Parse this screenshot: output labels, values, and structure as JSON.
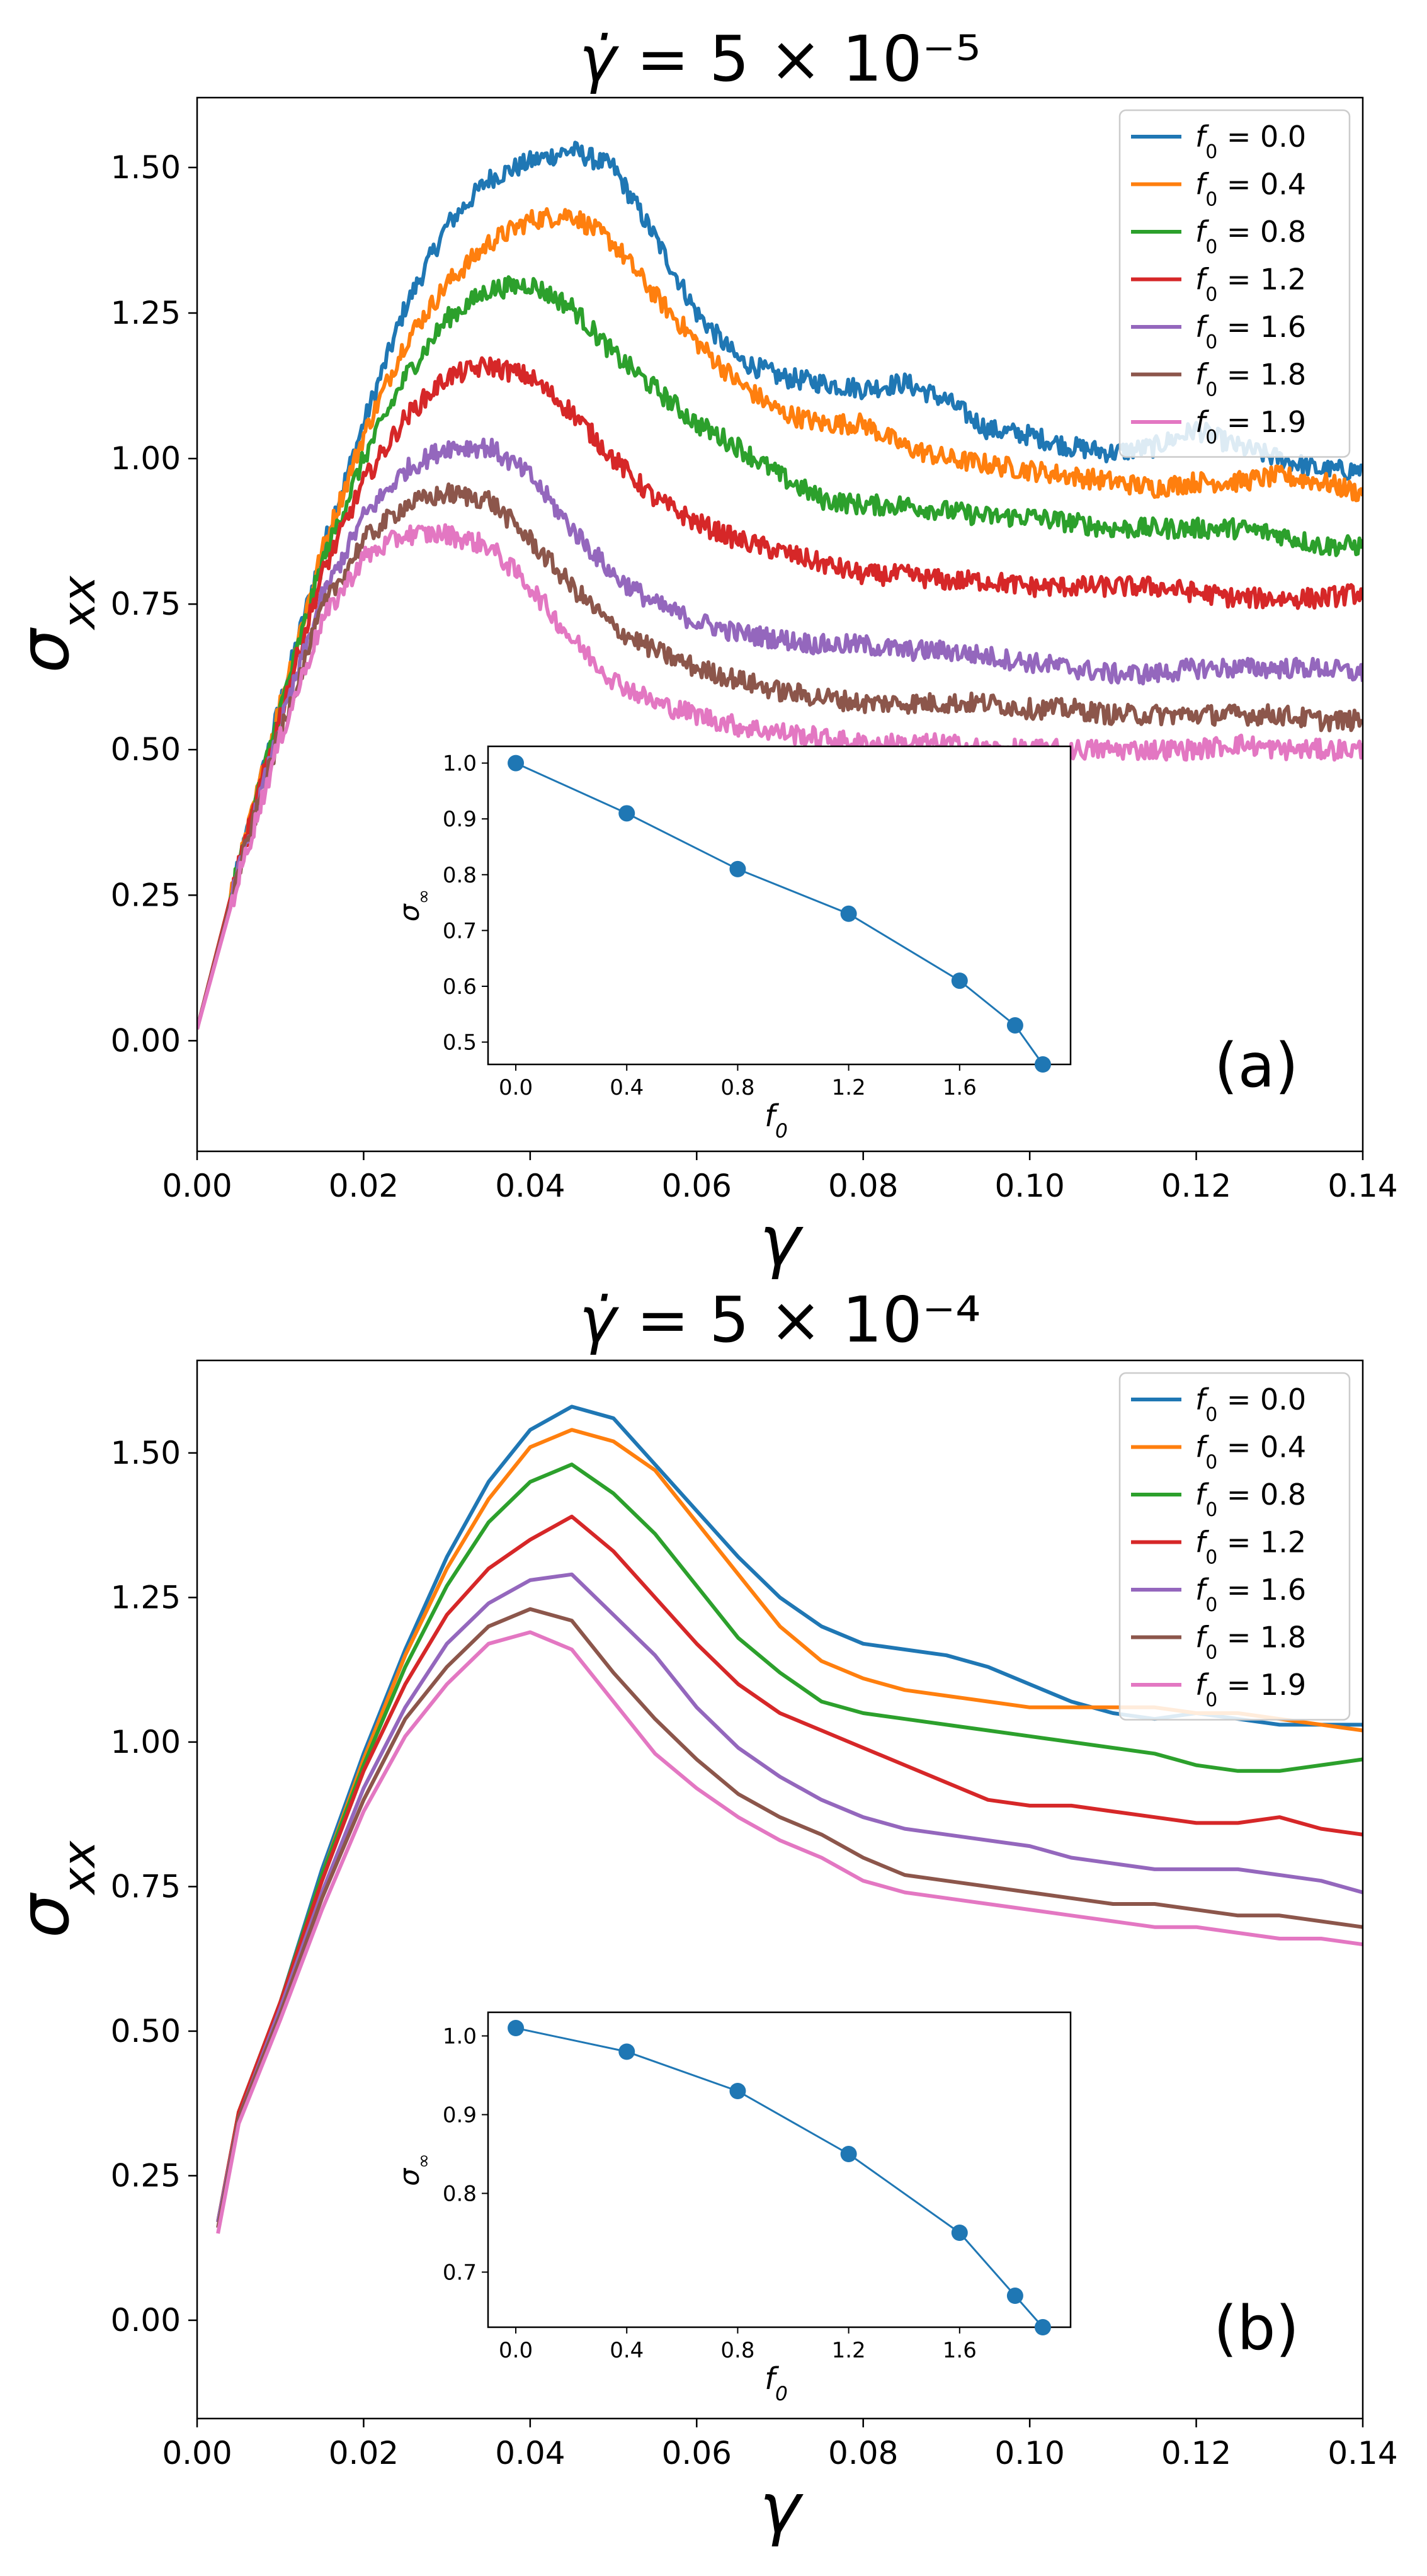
{
  "chart_data": [
    {
      "type": "line",
      "panel_label": "(a)",
      "title": "γ̇ = 5 × 10⁻⁵",
      "xlabel": "γ",
      "ylabel": "σxx",
      "xlim": [
        0.0,
        0.14
      ],
      "ylim": [
        -0.19,
        1.62
      ],
      "xticks": [
        "0.00",
        "0.02",
        "0.04",
        "0.06",
        "0.08",
        "0.10",
        "0.12",
        "0.14"
      ],
      "yticks": [
        "0.00",
        "0.25",
        "0.50",
        "0.75",
        "1.00",
        "1.25",
        "1.50"
      ],
      "grid": false,
      "legend_position": "top-right",
      "noisy": true,
      "series": [
        {
          "name": "f0 = 0.0",
          "color": "#1f77b4",
          "x": [
            0.0,
            0.005,
            0.01,
            0.015,
            0.02,
            0.025,
            0.03,
            0.035,
            0.04,
            0.045,
            0.05,
            0.055,
            0.06,
            0.065,
            0.07,
            0.075,
            0.08,
            0.085,
            0.09,
            0.095,
            0.1,
            0.105,
            0.11,
            0.115,
            0.12,
            0.125,
            0.13,
            0.135,
            0.14
          ],
          "y": [
            0.02,
            0.3,
            0.58,
            0.84,
            1.06,
            1.26,
            1.4,
            1.48,
            1.51,
            1.53,
            1.5,
            1.38,
            1.25,
            1.17,
            1.14,
            1.13,
            1.12,
            1.13,
            1.1,
            1.05,
            1.04,
            1.02,
            1.01,
            1.02,
            1.05,
            1.02,
            1.0,
            0.98,
            0.98
          ]
        },
        {
          "name": "f0 = 0.4",
          "color": "#ff7f0e",
          "x": [
            0.0,
            0.005,
            0.01,
            0.015,
            0.02,
            0.025,
            0.03,
            0.035,
            0.04,
            0.045,
            0.05,
            0.055,
            0.06,
            0.065,
            0.07,
            0.075,
            0.08,
            0.085,
            0.09,
            0.095,
            0.1,
            0.105,
            0.11,
            0.115,
            0.12,
            0.125,
            0.13,
            0.135,
            0.14
          ],
          "y": [
            0.02,
            0.3,
            0.58,
            0.84,
            1.04,
            1.2,
            1.3,
            1.37,
            1.41,
            1.42,
            1.37,
            1.28,
            1.2,
            1.13,
            1.08,
            1.06,
            1.06,
            1.02,
            1.0,
            0.99,
            0.98,
            0.97,
            0.96,
            0.95,
            0.96,
            0.96,
            0.97,
            0.96,
            0.94
          ]
        },
        {
          "name": "f0 = 0.8",
          "color": "#2ca02c",
          "x": [
            0.0,
            0.005,
            0.01,
            0.015,
            0.02,
            0.025,
            0.03,
            0.035,
            0.04,
            0.045,
            0.05,
            0.055,
            0.06,
            0.065,
            0.07,
            0.075,
            0.08,
            0.085,
            0.09,
            0.095,
            0.1,
            0.105,
            0.11,
            0.115,
            0.12,
            0.125,
            0.13,
            0.135,
            0.14
          ],
          "y": [
            0.02,
            0.3,
            0.57,
            0.82,
            1.0,
            1.14,
            1.24,
            1.29,
            1.3,
            1.26,
            1.18,
            1.12,
            1.06,
            1.02,
            0.97,
            0.93,
            0.92,
            0.92,
            0.91,
            0.9,
            0.9,
            0.89,
            0.88,
            0.88,
            0.88,
            0.88,
            0.87,
            0.85,
            0.85
          ]
        },
        {
          "name": "f0 = 1.2",
          "color": "#d62728",
          "x": [
            0.0,
            0.005,
            0.01,
            0.015,
            0.02,
            0.025,
            0.03,
            0.035,
            0.04,
            0.045,
            0.05,
            0.055,
            0.06,
            0.065,
            0.07,
            0.075,
            0.08,
            0.085,
            0.09,
            0.095,
            0.1,
            0.105,
            0.11,
            0.115,
            0.12,
            0.125,
            0.13,
            0.135,
            0.14
          ],
          "y": [
            0.02,
            0.3,
            0.56,
            0.8,
            0.96,
            1.07,
            1.14,
            1.16,
            1.14,
            1.08,
            1.0,
            0.93,
            0.89,
            0.86,
            0.84,
            0.82,
            0.8,
            0.8,
            0.79,
            0.79,
            0.78,
            0.78,
            0.78,
            0.78,
            0.77,
            0.76,
            0.76,
            0.76,
            0.77
          ]
        },
        {
          "name": "f0 = 1.6",
          "color": "#9467bd",
          "x": [
            0.0,
            0.005,
            0.01,
            0.015,
            0.02,
            0.025,
            0.03,
            0.035,
            0.04,
            0.045,
            0.05,
            0.055,
            0.06,
            0.065,
            0.07,
            0.075,
            0.08,
            0.085,
            0.09,
            0.095,
            0.1,
            0.105,
            0.11,
            0.115,
            0.12,
            0.125,
            0.13,
            0.135,
            0.14
          ],
          "y": [
            0.02,
            0.29,
            0.54,
            0.76,
            0.9,
            0.98,
            1.02,
            1.02,
            0.97,
            0.88,
            0.8,
            0.75,
            0.72,
            0.7,
            0.69,
            0.68,
            0.68,
            0.67,
            0.67,
            0.66,
            0.65,
            0.64,
            0.63,
            0.63,
            0.64,
            0.64,
            0.64,
            0.64,
            0.63
          ]
        },
        {
          "name": "f0 = 1.8",
          "color": "#8c564b",
          "x": [
            0.0,
            0.005,
            0.01,
            0.015,
            0.02,
            0.025,
            0.03,
            0.035,
            0.04,
            0.045,
            0.05,
            0.055,
            0.06,
            0.065,
            0.07,
            0.075,
            0.08,
            0.085,
            0.09,
            0.095,
            0.1,
            0.105,
            0.11,
            0.115,
            0.12,
            0.125,
            0.13,
            0.135,
            0.14
          ],
          "y": [
            0.02,
            0.29,
            0.53,
            0.74,
            0.86,
            0.92,
            0.94,
            0.93,
            0.86,
            0.78,
            0.71,
            0.67,
            0.64,
            0.62,
            0.6,
            0.59,
            0.58,
            0.58,
            0.58,
            0.58,
            0.57,
            0.57,
            0.56,
            0.56,
            0.56,
            0.56,
            0.56,
            0.55,
            0.55
          ]
        },
        {
          "name": "f0 = 1.9",
          "color": "#e377c2",
          "x": [
            0.0,
            0.005,
            0.01,
            0.015,
            0.02,
            0.025,
            0.03,
            0.035,
            0.04,
            0.045,
            0.05,
            0.055,
            0.06,
            0.065,
            0.07,
            0.075,
            0.08,
            0.085,
            0.09,
            0.095,
            0.1,
            0.105,
            0.11,
            0.115,
            0.12,
            0.125,
            0.13,
            0.135,
            0.14
          ],
          "y": [
            0.02,
            0.28,
            0.52,
            0.72,
            0.83,
            0.87,
            0.87,
            0.85,
            0.78,
            0.69,
            0.62,
            0.58,
            0.56,
            0.54,
            0.53,
            0.52,
            0.51,
            0.51,
            0.51,
            0.5,
            0.5,
            0.5,
            0.5,
            0.5,
            0.5,
            0.51,
            0.5,
            0.5,
            0.5
          ]
        }
      ],
      "inset": {
        "type": "line",
        "xlabel": "f0",
        "ylabel": "σ∞",
        "xlim": [
          -0.1,
          2.0
        ],
        "ylim": [
          0.46,
          1.03
        ],
        "xticks": [
          "0.0",
          "0.4",
          "0.8",
          "1.2",
          "1.6"
        ],
        "yticks": [
          "0.5",
          "0.6",
          "0.7",
          "0.8",
          "0.9",
          "1.0"
        ],
        "color": "#1f77b4",
        "x": [
          0.0,
          0.4,
          0.8,
          1.2,
          1.6,
          1.8,
          1.9
        ],
        "y": [
          1.0,
          0.91,
          0.81,
          0.73,
          0.61,
          0.53,
          0.46
        ]
      }
    },
    {
      "type": "line",
      "panel_label": "(b)",
      "title": "γ̇ = 5 × 10⁻⁴",
      "xlabel": "γ",
      "ylabel": "σxx",
      "xlim": [
        0.0,
        0.14
      ],
      "ylim": [
        -0.17,
        1.66
      ],
      "xticks": [
        "0.00",
        "0.02",
        "0.04",
        "0.06",
        "0.08",
        "0.10",
        "0.12",
        "0.14"
      ],
      "yticks": [
        "0.00",
        "0.25",
        "0.50",
        "0.75",
        "1.00",
        "1.25",
        "1.50"
      ],
      "grid": false,
      "legend_position": "top-right",
      "noisy": false,
      "series": [
        {
          "name": "f0 = 0.0",
          "color": "#1f77b4",
          "x": [
            0.0025,
            0.005,
            0.01,
            0.015,
            0.02,
            0.025,
            0.03,
            0.035,
            0.04,
            0.045,
            0.05,
            0.055,
            0.06,
            0.065,
            0.07,
            0.075,
            0.08,
            0.085,
            0.09,
            0.095,
            0.1,
            0.105,
            0.11,
            0.115,
            0.12,
            0.125,
            0.13,
            0.135,
            0.14
          ],
          "y": [
            0.17,
            0.36,
            0.55,
            0.78,
            0.98,
            1.16,
            1.32,
            1.45,
            1.54,
            1.58,
            1.56,
            1.48,
            1.4,
            1.32,
            1.25,
            1.2,
            1.17,
            1.16,
            1.15,
            1.13,
            1.1,
            1.07,
            1.05,
            1.04,
            1.05,
            1.04,
            1.03,
            1.03,
            1.03
          ]
        },
        {
          "name": "f0 = 0.4",
          "color": "#ff7f0e",
          "x": [
            0.0025,
            0.005,
            0.01,
            0.015,
            0.02,
            0.025,
            0.03,
            0.035,
            0.04,
            0.045,
            0.05,
            0.055,
            0.06,
            0.065,
            0.07,
            0.075,
            0.08,
            0.085,
            0.09,
            0.095,
            0.1,
            0.105,
            0.11,
            0.115,
            0.12,
            0.125,
            0.13,
            0.135,
            0.14
          ],
          "y": [
            0.17,
            0.36,
            0.55,
            0.77,
            0.97,
            1.15,
            1.3,
            1.42,
            1.51,
            1.54,
            1.52,
            1.47,
            1.38,
            1.29,
            1.2,
            1.14,
            1.11,
            1.09,
            1.08,
            1.07,
            1.06,
            1.06,
            1.06,
            1.06,
            1.05,
            1.05,
            1.04,
            1.03,
            1.02
          ]
        },
        {
          "name": "f0 = 0.8",
          "color": "#2ca02c",
          "x": [
            0.0025,
            0.005,
            0.01,
            0.015,
            0.02,
            0.025,
            0.03,
            0.035,
            0.04,
            0.045,
            0.05,
            0.055,
            0.06,
            0.065,
            0.07,
            0.075,
            0.08,
            0.085,
            0.09,
            0.095,
            0.1,
            0.105,
            0.11,
            0.115,
            0.12,
            0.125,
            0.13,
            0.135,
            0.14
          ],
          "y": [
            0.17,
            0.36,
            0.55,
            0.77,
            0.96,
            1.13,
            1.27,
            1.38,
            1.45,
            1.48,
            1.43,
            1.36,
            1.27,
            1.18,
            1.12,
            1.07,
            1.05,
            1.04,
            1.03,
            1.02,
            1.01,
            1.0,
            0.99,
            0.98,
            0.96,
            0.95,
            0.95,
            0.96,
            0.97
          ]
        },
        {
          "name": "f0 = 1.2",
          "color": "#d62728",
          "x": [
            0.0025,
            0.005,
            0.01,
            0.015,
            0.02,
            0.025,
            0.03,
            0.035,
            0.04,
            0.045,
            0.05,
            0.055,
            0.06,
            0.065,
            0.07,
            0.075,
            0.08,
            0.085,
            0.09,
            0.095,
            0.1,
            0.105,
            0.11,
            0.115,
            0.12,
            0.125,
            0.13,
            0.135,
            0.14
          ],
          "y": [
            0.17,
            0.36,
            0.55,
            0.76,
            0.95,
            1.1,
            1.22,
            1.3,
            1.35,
            1.39,
            1.33,
            1.25,
            1.17,
            1.1,
            1.05,
            1.02,
            0.99,
            0.96,
            0.93,
            0.9,
            0.89,
            0.89,
            0.88,
            0.87,
            0.86,
            0.86,
            0.87,
            0.85,
            0.84
          ]
        },
        {
          "name": "f0 = 1.6",
          "color": "#9467bd",
          "x": [
            0.0025,
            0.005,
            0.01,
            0.015,
            0.02,
            0.025,
            0.03,
            0.035,
            0.04,
            0.045,
            0.05,
            0.055,
            0.06,
            0.065,
            0.07,
            0.075,
            0.08,
            0.085,
            0.09,
            0.095,
            0.1,
            0.105,
            0.11,
            0.115,
            0.12,
            0.125,
            0.13,
            0.135,
            0.14
          ],
          "y": [
            0.17,
            0.35,
            0.54,
            0.74,
            0.92,
            1.06,
            1.17,
            1.24,
            1.28,
            1.29,
            1.22,
            1.15,
            1.06,
            0.99,
            0.94,
            0.9,
            0.87,
            0.85,
            0.84,
            0.83,
            0.82,
            0.8,
            0.79,
            0.78,
            0.78,
            0.78,
            0.77,
            0.76,
            0.74
          ]
        },
        {
          "name": "f0 = 1.8",
          "color": "#8c564b",
          "x": [
            0.0025,
            0.005,
            0.01,
            0.015,
            0.02,
            0.025,
            0.03,
            0.035,
            0.04,
            0.045,
            0.05,
            0.055,
            0.06,
            0.065,
            0.07,
            0.075,
            0.08,
            0.085,
            0.09,
            0.095,
            0.1,
            0.105,
            0.11,
            0.115,
            0.12,
            0.125,
            0.13,
            0.135,
            0.14
          ],
          "y": [
            0.16,
            0.35,
            0.53,
            0.73,
            0.9,
            1.04,
            1.13,
            1.2,
            1.23,
            1.21,
            1.12,
            1.04,
            0.97,
            0.91,
            0.87,
            0.84,
            0.8,
            0.77,
            0.76,
            0.75,
            0.74,
            0.73,
            0.72,
            0.72,
            0.71,
            0.7,
            0.7,
            0.69,
            0.68
          ]
        },
        {
          "name": "f0 = 1.9",
          "color": "#e377c2",
          "x": [
            0.0025,
            0.005,
            0.01,
            0.015,
            0.02,
            0.025,
            0.03,
            0.035,
            0.04,
            0.045,
            0.05,
            0.055,
            0.06,
            0.065,
            0.07,
            0.075,
            0.08,
            0.085,
            0.09,
            0.095,
            0.1,
            0.105,
            0.11,
            0.115,
            0.12,
            0.125,
            0.13,
            0.135,
            0.14
          ],
          "y": [
            0.15,
            0.34,
            0.52,
            0.71,
            0.88,
            1.01,
            1.1,
            1.17,
            1.19,
            1.16,
            1.07,
            0.98,
            0.92,
            0.87,
            0.83,
            0.8,
            0.76,
            0.74,
            0.73,
            0.72,
            0.71,
            0.7,
            0.69,
            0.68,
            0.68,
            0.67,
            0.66,
            0.66,
            0.65
          ]
        }
      ],
      "inset": {
        "type": "line",
        "xlabel": "f0",
        "ylabel": "σ∞",
        "xlim": [
          -0.1,
          2.0
        ],
        "ylim": [
          0.63,
          1.03
        ],
        "xticks": [
          "0.0",
          "0.4",
          "0.8",
          "1.2",
          "1.6"
        ],
        "yticks": [
          "0.7",
          "0.8",
          "0.9",
          "1.0"
        ],
        "color": "#1f77b4",
        "x": [
          0.0,
          0.4,
          0.8,
          1.2,
          1.6,
          1.8,
          1.9
        ],
        "y": [
          1.01,
          0.98,
          0.93,
          0.85,
          0.75,
          0.67,
          0.63
        ]
      }
    }
  ]
}
